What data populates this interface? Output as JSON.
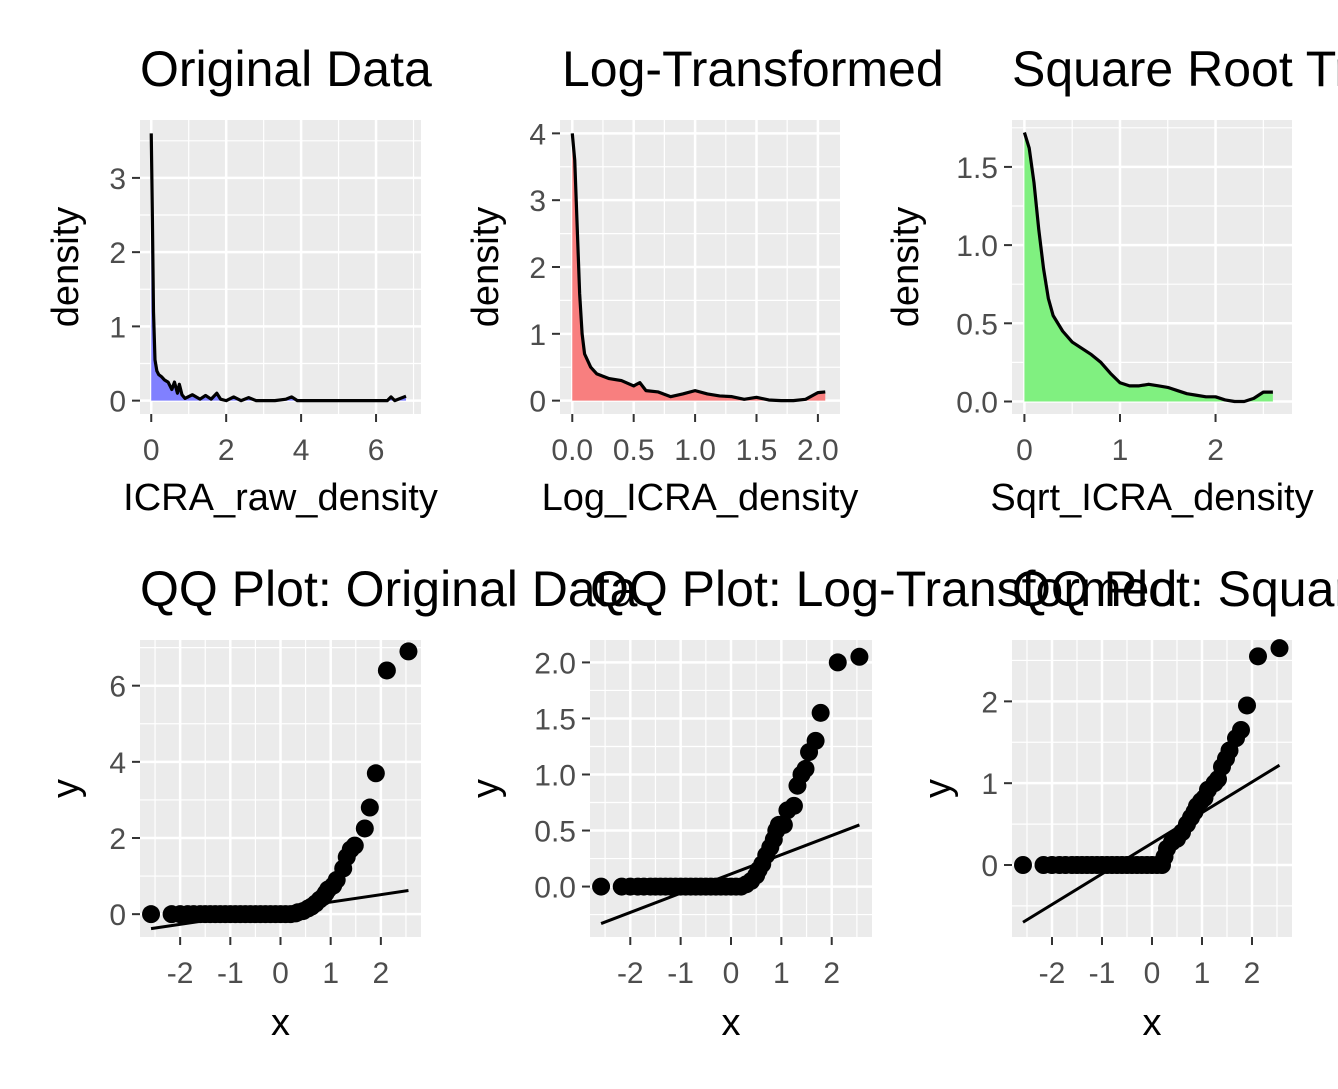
{
  "chart_data": [
    {
      "type": "area",
      "title": "Original Data",
      "xlabel": "ICRA_raw_density",
      "ylabel": "density",
      "xlim": [
        -0.3,
        7.2
      ],
      "ylim": [
        -0.18,
        3.78
      ],
      "x_ticks": [
        0,
        2,
        4,
        6
      ],
      "x_tick_labels": [
        "0",
        "2",
        "4",
        "6"
      ],
      "y_ticks": [
        0,
        1,
        2,
        3
      ],
      "y_tick_labels": [
        "0",
        "1",
        "2",
        "3"
      ],
      "fill_color": "#8080ff",
      "grid": true,
      "x": [
        0.0,
        0.03,
        0.06,
        0.1,
        0.15,
        0.2,
        0.28,
        0.35,
        0.45,
        0.55,
        0.62,
        0.7,
        0.75,
        0.82,
        0.9,
        1.1,
        1.3,
        1.45,
        1.6,
        1.75,
        1.85,
        2.0,
        2.2,
        2.4,
        2.6,
        2.8,
        3.0,
        3.3,
        3.6,
        3.75,
        3.9,
        4.2,
        5.0,
        6.0,
        6.3,
        6.4,
        6.5,
        6.6,
        6.8
      ],
      "y": [
        3.6,
        2.5,
        1.2,
        0.55,
        0.4,
        0.35,
        0.32,
        0.28,
        0.25,
        0.15,
        0.25,
        0.1,
        0.22,
        0.08,
        0.03,
        0.08,
        0.02,
        0.07,
        0.02,
        0.1,
        0.02,
        0.0,
        0.05,
        0.0,
        0.04,
        0.0,
        0.0,
        0.0,
        0.02,
        0.05,
        0.0,
        0.0,
        0.0,
        0.0,
        0.0,
        0.05,
        0.0,
        0.02,
        0.06
      ]
    },
    {
      "type": "area",
      "title": "Log-Transformed",
      "xlabel": "Log_ICRA_density",
      "ylabel": "density",
      "xlim": [
        -0.1,
        2.18
      ],
      "ylim": [
        -0.2,
        4.2
      ],
      "x_ticks": [
        0,
        0.5,
        1.0,
        1.5,
        2.0
      ],
      "x_tick_labels": [
        "0.0",
        "0.5",
        "1.0",
        "1.5",
        "2.0"
      ],
      "y_ticks": [
        0,
        1,
        2,
        3,
        4
      ],
      "y_tick_labels": [
        "0",
        "1",
        "2",
        "3",
        "4"
      ],
      "fill_color": "#f87f7f",
      "grid": true,
      "x": [
        0.0,
        0.02,
        0.04,
        0.06,
        0.08,
        0.1,
        0.15,
        0.2,
        0.3,
        0.4,
        0.5,
        0.55,
        0.6,
        0.7,
        0.8,
        0.9,
        1.0,
        1.1,
        1.2,
        1.3,
        1.4,
        1.5,
        1.6,
        1.7,
        1.8,
        1.9,
        2.0,
        2.06
      ],
      "y": [
        4.0,
        3.6,
        2.6,
        1.6,
        1.0,
        0.7,
        0.5,
        0.4,
        0.33,
        0.3,
        0.22,
        0.27,
        0.15,
        0.13,
        0.06,
        0.1,
        0.15,
        0.1,
        0.07,
        0.06,
        0.02,
        0.05,
        0.01,
        0.0,
        0.0,
        0.02,
        0.12,
        0.13
      ]
    },
    {
      "type": "area",
      "title": "Square Root Transformed",
      "xlabel": "Sqrt_ICRA_density",
      "ylabel": "density",
      "xlim": [
        -0.13,
        2.8
      ],
      "ylim": [
        -0.08,
        1.8
      ],
      "x_ticks": [
        0,
        1,
        2
      ],
      "x_tick_labels": [
        "0",
        "1",
        "2"
      ],
      "y_ticks": [
        0,
        0.5,
        1.0,
        1.5
      ],
      "y_tick_labels": [
        "0.0",
        "0.5",
        "1.0",
        "1.5"
      ],
      "fill_color": "#80f080",
      "grid": true,
      "x": [
        0.0,
        0.05,
        0.1,
        0.15,
        0.2,
        0.25,
        0.3,
        0.4,
        0.5,
        0.6,
        0.7,
        0.8,
        0.9,
        1.0,
        1.1,
        1.2,
        1.3,
        1.4,
        1.5,
        1.6,
        1.7,
        1.8,
        1.9,
        2.0,
        2.1,
        2.2,
        2.3,
        2.4,
        2.5,
        2.6
      ],
      "y": [
        1.72,
        1.62,
        1.4,
        1.1,
        0.85,
        0.66,
        0.55,
        0.45,
        0.38,
        0.34,
        0.3,
        0.25,
        0.18,
        0.12,
        0.1,
        0.1,
        0.11,
        0.1,
        0.09,
        0.07,
        0.05,
        0.04,
        0.03,
        0.03,
        0.01,
        0.0,
        0.0,
        0.02,
        0.06,
        0.06
      ]
    },
    {
      "type": "scatter",
      "title": "QQ Plot: Original Data",
      "xlabel": "x",
      "ylabel": "y",
      "xlim": [
        -2.8,
        2.8
      ],
      "ylim": [
        -0.6,
        7.2
      ],
      "x_ticks": [
        -2,
        -1,
        0,
        1,
        2
      ],
      "x_tick_labels": [
        "-2",
        "-1",
        "0",
        "1",
        "2"
      ],
      "y_ticks": [
        0,
        2,
        4,
        6
      ],
      "y_tick_labels": [
        "0",
        "2",
        "4",
        "6"
      ],
      "grid": true,
      "x": [
        -2.58,
        -2.17,
        -2.0,
        -1.85,
        -1.73,
        -1.6,
        -1.5,
        -1.4,
        -1.3,
        -1.2,
        -1.1,
        -1.0,
        -0.9,
        -0.8,
        -0.7,
        -0.6,
        -0.5,
        -0.4,
        -0.3,
        -0.2,
        -0.1,
        0.0,
        0.1,
        0.2,
        0.3,
        0.35,
        0.45,
        0.55,
        0.62,
        0.7,
        0.78,
        0.85,
        0.9,
        0.95,
        1.05,
        1.12,
        1.25,
        1.32,
        1.4,
        1.48,
        1.68,
        1.78,
        1.9,
        2.12,
        2.55
      ],
      "y": [
        0.0,
        0.0,
        0.0,
        0.0,
        0.0,
        0.0,
        0.0,
        0.0,
        0.0,
        0.0,
        0.0,
        0.0,
        0.0,
        0.0,
        0.0,
        0.0,
        0.0,
        0.0,
        0.0,
        0.0,
        0.0,
        0.0,
        0.0,
        0.0,
        0.02,
        0.05,
        0.08,
        0.15,
        0.2,
        0.28,
        0.38,
        0.45,
        0.55,
        0.65,
        0.75,
        0.9,
        1.2,
        1.5,
        1.7,
        1.8,
        2.25,
        2.8,
        3.7,
        6.4,
        6.9
      ],
      "line_x": [
        -2.58,
        2.55
      ],
      "line_y": [
        -0.38,
        0.62
      ]
    },
    {
      "type": "scatter",
      "title": "QQ Plot: Log-Transformed",
      "xlabel": "x",
      "ylabel": "y",
      "xlim": [
        -2.8,
        2.8
      ],
      "ylim": [
        -0.45,
        2.2
      ],
      "x_ticks": [
        -2,
        -1,
        0,
        1,
        2
      ],
      "x_tick_labels": [
        "-2",
        "-1",
        "0",
        "1",
        "2"
      ],
      "y_ticks": [
        0,
        0.5,
        1.0,
        1.5,
        2.0
      ],
      "y_tick_labels": [
        "0.0",
        "0.5",
        "1.0",
        "1.5",
        "2.0"
      ],
      "grid": true,
      "x": [
        -2.58,
        -2.17,
        -2.0,
        -1.85,
        -1.73,
        -1.6,
        -1.5,
        -1.4,
        -1.3,
        -1.2,
        -1.1,
        -1.0,
        -0.9,
        -0.8,
        -0.7,
        -0.6,
        -0.5,
        -0.4,
        -0.3,
        -0.2,
        -0.1,
        0.0,
        0.1,
        0.2,
        0.3,
        0.4,
        0.5,
        0.55,
        0.62,
        0.7,
        0.78,
        0.85,
        0.9,
        0.95,
        1.05,
        1.12,
        1.25,
        1.32,
        1.4,
        1.48,
        1.55,
        1.68,
        1.78,
        2.12,
        2.55
      ],
      "y": [
        0.0,
        0.0,
        0.0,
        0.0,
        0.0,
        0.0,
        0.0,
        0.0,
        0.0,
        0.0,
        0.0,
        0.0,
        0.0,
        0.0,
        0.0,
        0.0,
        0.0,
        0.0,
        0.0,
        0.0,
        0.0,
        0.0,
        0.0,
        0.0,
        0.02,
        0.05,
        0.1,
        0.15,
        0.2,
        0.28,
        0.35,
        0.42,
        0.5,
        0.55,
        0.55,
        0.68,
        0.72,
        0.9,
        1.0,
        1.05,
        1.2,
        1.3,
        1.55,
        2.0,
        2.05
      ],
      "line_x": [
        -2.58,
        2.55
      ],
      "line_y": [
        -0.33,
        0.55
      ]
    },
    {
      "type": "scatter",
      "title": "QQ Plot: Square Root Transformed",
      "xlabel": "x",
      "ylabel": "y",
      "xlim": [
        -2.8,
        2.8
      ],
      "ylim": [
        -0.88,
        2.75
      ],
      "x_ticks": [
        -2,
        -1,
        0,
        1,
        2
      ],
      "x_tick_labels": [
        "-2",
        "-1",
        "0",
        "1",
        "2"
      ],
      "y_ticks": [
        0,
        1,
        2
      ],
      "y_tick_labels": [
        "0",
        "1",
        "2"
      ],
      "grid": true,
      "x": [
        -2.58,
        -2.17,
        -2.0,
        -1.85,
        -1.73,
        -1.6,
        -1.5,
        -1.4,
        -1.3,
        -1.2,
        -1.1,
        -1.0,
        -0.9,
        -0.8,
        -0.7,
        -0.6,
        -0.5,
        -0.4,
        -0.3,
        -0.2,
        -0.1,
        0.0,
        0.1,
        0.2,
        0.25,
        0.3,
        0.4,
        0.5,
        0.6,
        0.7,
        0.78,
        0.85,
        0.9,
        0.98,
        1.05,
        1.12,
        1.25,
        1.32,
        1.4,
        1.48,
        1.55,
        1.68,
        1.78,
        1.9,
        2.12,
        2.55
      ],
      "y": [
        0.0,
        0.0,
        0.0,
        0.0,
        0.0,
        0.0,
        0.0,
        0.0,
        0.0,
        0.0,
        0.0,
        0.0,
        0.0,
        0.0,
        0.0,
        0.0,
        0.0,
        0.0,
        0.0,
        0.0,
        0.0,
        0.0,
        0.0,
        0.0,
        0.1,
        0.2,
        0.28,
        0.32,
        0.4,
        0.5,
        0.58,
        0.65,
        0.72,
        0.78,
        0.82,
        0.92,
        1.0,
        1.05,
        1.2,
        1.3,
        1.4,
        1.55,
        1.65,
        1.95,
        2.55,
        2.65
      ],
      "line_x": [
        -2.58,
        2.55
      ],
      "line_y": [
        -0.7,
        1.22
      ]
    }
  ]
}
